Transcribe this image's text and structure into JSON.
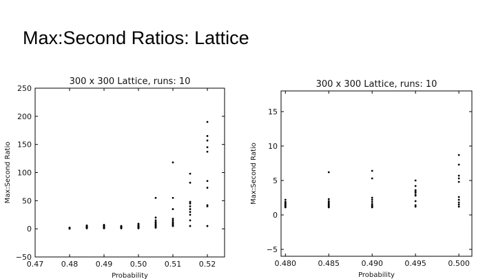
{
  "slide": {
    "title": "Max:Second Ratios: Lattice"
  },
  "chart_data": [
    {
      "type": "scatter",
      "title": "300 x 300 Lattice, runs: 10",
      "xlabel": "Probability",
      "ylabel": "Max:Second Ratio",
      "xlim": [
        0.47,
        0.525
      ],
      "ylim": [
        -50,
        250
      ],
      "xticks": [
        0.47,
        0.48,
        0.49,
        0.5,
        0.51,
        0.52
      ],
      "xtick_labels": [
        "0.47",
        "0.48",
        "0.49",
        "0.50",
        "0.51",
        "0.52"
      ],
      "yticks": [
        -50,
        0,
        50,
        100,
        150,
        200,
        250
      ],
      "ytick_labels": [
        "−50",
        "0",
        "50",
        "100",
        "150",
        "200",
        "250"
      ],
      "grid": false,
      "points": [
        [
          0.48,
          0.5
        ],
        [
          0.48,
          1.0
        ],
        [
          0.48,
          1.5
        ],
        [
          0.48,
          1.2
        ],
        [
          0.48,
          0.8
        ],
        [
          0.48,
          1.8
        ],
        [
          0.48,
          0.3
        ],
        [
          0.48,
          2.0
        ],
        [
          0.48,
          1.1
        ],
        [
          0.48,
          0.6
        ],
        [
          0.485,
          1
        ],
        [
          0.485,
          2
        ],
        [
          0.485,
          3
        ],
        [
          0.485,
          5
        ],
        [
          0.485,
          6
        ],
        [
          0.485,
          1.5
        ],
        [
          0.485,
          2.5
        ],
        [
          0.485,
          4
        ],
        [
          0.485,
          1.2
        ],
        [
          0.485,
          3.5
        ],
        [
          0.49,
          1
        ],
        [
          0.49,
          2
        ],
        [
          0.49,
          3
        ],
        [
          0.49,
          5
        ],
        [
          0.49,
          6
        ],
        [
          0.49,
          7
        ],
        [
          0.49,
          1.5
        ],
        [
          0.49,
          2.5
        ],
        [
          0.49,
          4
        ],
        [
          0.49,
          1.2
        ],
        [
          0.495,
          1
        ],
        [
          0.495,
          2
        ],
        [
          0.495,
          3
        ],
        [
          0.495,
          4
        ],
        [
          0.495,
          5
        ],
        [
          0.495,
          1.5
        ],
        [
          0.495,
          2.5
        ],
        [
          0.495,
          3.5
        ],
        [
          0.495,
          1.2
        ],
        [
          0.495,
          2.2
        ],
        [
          0.5,
          1
        ],
        [
          0.5,
          2
        ],
        [
          0.5,
          3
        ],
        [
          0.5,
          5
        ],
        [
          0.5,
          6
        ],
        [
          0.5,
          8
        ],
        [
          0.5,
          9
        ],
        [
          0.5,
          1.5
        ],
        [
          0.5,
          2.5
        ],
        [
          0.5,
          4
        ],
        [
          0.505,
          2
        ],
        [
          0.505,
          5
        ],
        [
          0.505,
          8
        ],
        [
          0.505,
          12
        ],
        [
          0.505,
          15
        ],
        [
          0.505,
          20
        ],
        [
          0.505,
          55
        ],
        [
          0.505,
          3
        ],
        [
          0.505,
          6
        ],
        [
          0.505,
          10
        ],
        [
          0.51,
          5
        ],
        [
          0.51,
          8
        ],
        [
          0.51,
          12
        ],
        [
          0.51,
          15
        ],
        [
          0.51,
          18
        ],
        [
          0.51,
          35
        ],
        [
          0.51,
          55
        ],
        [
          0.51,
          118
        ],
        [
          0.51,
          10
        ],
        [
          0.51,
          6
        ],
        [
          0.515,
          5
        ],
        [
          0.515,
          15
        ],
        [
          0.515,
          30
        ],
        [
          0.515,
          35
        ],
        [
          0.515,
          40
        ],
        [
          0.515,
          45
        ],
        [
          0.515,
          48
        ],
        [
          0.515,
          82
        ],
        [
          0.515,
          98
        ],
        [
          0.515,
          25
        ],
        [
          0.52,
          5
        ],
        [
          0.52,
          40
        ],
        [
          0.52,
          42
        ],
        [
          0.52,
          73
        ],
        [
          0.52,
          85
        ],
        [
          0.52,
          137
        ],
        [
          0.52,
          145
        ],
        [
          0.52,
          157
        ],
        [
          0.52,
          165
        ],
        [
          0.52,
          190
        ]
      ]
    },
    {
      "type": "scatter",
      "title": "300 x 300 Lattice, runs: 10",
      "xlabel": "Probability",
      "ylabel": "Max:Second Ratio",
      "xlim": [
        0.4795,
        0.5015
      ],
      "ylim": [
        -6,
        18
      ],
      "xticks": [
        0.48,
        0.485,
        0.49,
        0.495,
        0.5
      ],
      "xtick_labels": [
        "0.480",
        "0.485",
        "0.490",
        "0.495",
        "0.500"
      ],
      "yticks": [
        -5,
        0,
        5,
        10,
        15
      ],
      "ytick_labels": [
        "−5",
        "0",
        "5",
        "10",
        "15"
      ],
      "grid": false,
      "points": [
        [
          0.48,
          1.1
        ],
        [
          0.48,
          1.3
        ],
        [
          0.48,
          1.5
        ],
        [
          0.48,
          1.7
        ],
        [
          0.48,
          1.9
        ],
        [
          0.48,
          2.2
        ],
        [
          0.48,
          1.2
        ],
        [
          0.48,
          1.4
        ],
        [
          0.48,
          1.6
        ],
        [
          0.48,
          1.8
        ],
        [
          0.485,
          1.1
        ],
        [
          0.485,
          1.3
        ],
        [
          0.485,
          1.5
        ],
        [
          0.485,
          1.8
        ],
        [
          0.485,
          2.0
        ],
        [
          0.485,
          2.3
        ],
        [
          0.485,
          6.2
        ],
        [
          0.485,
          1.2
        ],
        [
          0.485,
          1.6
        ],
        [
          0.485,
          1.4
        ],
        [
          0.49,
          1.1
        ],
        [
          0.49,
          1.3
        ],
        [
          0.49,
          1.6
        ],
        [
          0.49,
          1.9
        ],
        [
          0.49,
          2.2
        ],
        [
          0.49,
          2.5
        ],
        [
          0.49,
          5.3
        ],
        [
          0.49,
          6.4
        ],
        [
          0.49,
          1.4
        ],
        [
          0.49,
          1.2
        ],
        [
          0.495,
          1.2
        ],
        [
          0.495,
          2.0
        ],
        [
          0.495,
          2.8
        ],
        [
          0.495,
          3.2
        ],
        [
          0.495,
          3.6
        ],
        [
          0.495,
          4.2
        ],
        [
          0.495,
          5.0
        ],
        [
          0.495,
          1.4
        ],
        [
          0.495,
          3.4
        ],
        [
          0.495,
          2.9
        ],
        [
          0.5,
          1.2
        ],
        [
          0.5,
          1.5
        ],
        [
          0.5,
          2.2
        ],
        [
          0.5,
          2.6
        ],
        [
          0.5,
          4.8
        ],
        [
          0.5,
          5.3
        ],
        [
          0.5,
          5.7
        ],
        [
          0.5,
          7.3
        ],
        [
          0.5,
          8.7
        ],
        [
          0.5,
          1.8
        ]
      ]
    }
  ]
}
